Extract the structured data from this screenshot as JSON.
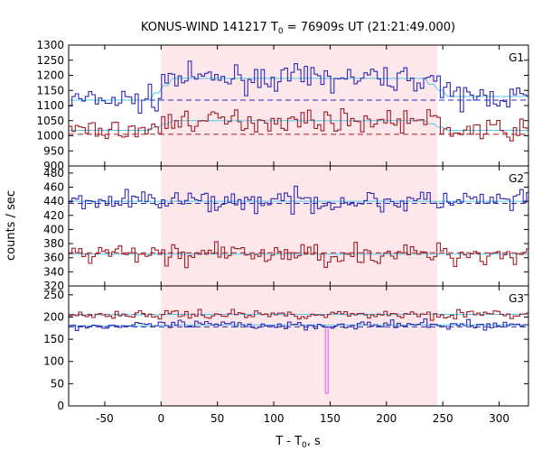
{
  "chart_data": {
    "type": "line",
    "title_prefix": "KONUS-WIND 141217 T",
    "title_sub": "0",
    "title_suffix": " = 76909s UT (21:21:49.000)",
    "xlabel_prefix": "T - T",
    "xlabel_sub": "0",
    "xlabel_suffix": ", s",
    "ylabel": "counts / sec",
    "xlim": [
      -82,
      326
    ],
    "xticks": [
      -50,
      0,
      50,
      100,
      150,
      200,
      250,
      300
    ],
    "shaded_interval": [
      0,
      245
    ],
    "bin_width": 2.944,
    "panels": [
      {
        "label": "G1",
        "ylim": [
          900,
          1300
        ],
        "yticks": [
          900,
          950,
          1000,
          1050,
          1100,
          1150,
          1200,
          1250,
          1300
        ],
        "series": [
          {
            "color": "#2b2bb8",
            "background": 1118,
            "level_before": 1118,
            "level_during": 1190,
            "level_after": 1130,
            "noise": 28
          },
          {
            "color": "#a01c24",
            "background": 1005,
            "level_before": 1018,
            "level_during": 1050,
            "level_after": 1018,
            "noise": 24
          }
        ]
      },
      {
        "label": "G2",
        "ylim": [
          320,
          490
        ],
        "yticks": [
          320,
          340,
          360,
          380,
          400,
          420,
          440,
          460,
          480
        ],
        "series": [
          {
            "color": "#2b2bb8",
            "background": 437,
            "level_before": 440,
            "level_during": 440,
            "level_after": 440,
            "noise": 11
          },
          {
            "color": "#a01c24",
            "background": 367,
            "level_before": 365,
            "level_during": 365,
            "level_after": 365,
            "noise": 11
          }
        ]
      },
      {
        "label": "G3",
        "ylim": [
          0,
          270
        ],
        "yticks": [
          0,
          50,
          100,
          150,
          200,
          250
        ],
        "spike": {
          "x": 147,
          "y": 28,
          "color": "#e070e0"
        },
        "series": [
          {
            "color": "#2b2bb8",
            "background": 178,
            "level_before": 180,
            "level_during": 182,
            "level_after": 182,
            "noise": 7
          },
          {
            "color": "#a01c24",
            "background": 206,
            "level_before": 205,
            "level_during": 206,
            "level_after": 206,
            "noise": 7
          }
        ]
      }
    ]
  }
}
